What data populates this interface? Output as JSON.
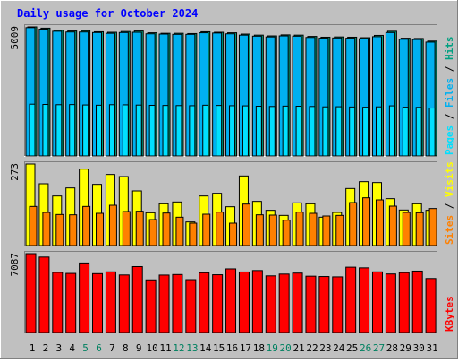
{
  "chart_data": {
    "type": "bar",
    "title": "Daily usage for October 2024",
    "categories": [
      "1",
      "2",
      "3",
      "4",
      "5",
      "6",
      "7",
      "8",
      "9",
      "10",
      "11",
      "12",
      "13",
      "14",
      "15",
      "16",
      "17",
      "18",
      "19",
      "20",
      "21",
      "22",
      "23",
      "24",
      "25",
      "26",
      "27",
      "28",
      "29",
      "30",
      "31"
    ],
    "weekend_days": [
      "5",
      "6",
      "12",
      "13",
      "19",
      "20",
      "26",
      "27"
    ],
    "panels": [
      {
        "id": "hits-files-pages",
        "ymax_label": "5009",
        "ymax": 5009,
        "legend": [
          "Pages",
          "/",
          "Files",
          "/",
          "Hits"
        ],
        "series": [
          {
            "name": "Hits",
            "color": "#00a080",
            "values": [
              5009,
              4960,
              4880,
              4850,
              4860,
              4820,
              4800,
              4830,
              4850,
              4780,
              4760,
              4760,
              4750,
              4820,
              4800,
              4780,
              4730,
              4690,
              4660,
              4700,
              4690,
              4640,
              4610,
              4620,
              4610,
              4590,
              4680,
              4840,
              4570,
              4560,
              4460
            ]
          },
          {
            "name": "Files",
            "color": "#00b0f0",
            "values": [
              4980,
              4920,
              4840,
              4810,
              4810,
              4790,
              4760,
              4790,
              4800,
              4740,
              4730,
              4720,
              4720,
              4780,
              4770,
              4740,
              4690,
              4650,
              4620,
              4660,
              4650,
              4600,
              4570,
              4580,
              4570,
              4550,
              4630,
              4790,
              4530,
              4520,
              4420
            ]
          },
          {
            "name": "Pages",
            "color": "#00e0ff",
            "values": [
              2010,
              2000,
              1990,
              1995,
              1980,
              1970,
              1990,
              1985,
              1975,
              1965,
              1960,
              1955,
              1950,
              1970,
              1960,
              1950,
              1945,
              1930,
              1920,
              1935,
              1930,
              1920,
              1905,
              1910,
              1900,
              1890,
              1905,
              1945,
              1890,
              1885,
              1860
            ]
          }
        ]
      },
      {
        "id": "visits-sites",
        "ymax_label": "273",
        "ymax": 273,
        "legend": [
          "Sites",
          "/",
          "Visits"
        ],
        "series": [
          {
            "name": "Visits",
            "color": "#ffff00",
            "values": [
              273,
              207,
              166,
              193,
              256,
              205,
              238,
              231,
              183,
              110,
              140,
              146,
              79,
              166,
              175,
              130,
              233,
              148,
              118,
              101,
              143,
              140,
              95,
              111,
              191,
              214,
              211,
              157,
              119,
              140,
              118
            ]
          },
          {
            "name": "Sites",
            "color": "#ff8000",
            "values": [
              131,
              111,
              104,
              103,
              131,
              108,
              135,
              114,
              115,
              87,
              109,
              95,
              75,
              105,
              112,
              75,
              139,
              103,
              102,
              85,
              112,
              108,
              99,
              101,
              144,
              160,
              153,
              132,
              111,
              110,
              124
            ]
          }
        ]
      },
      {
        "id": "kbytes",
        "ymax_label": "7087",
        "ymax": 7087,
        "legend": [
          "KBytes"
        ],
        "series": [
          {
            "name": "KBytes",
            "color": "#ff0000",
            "values": [
              7087,
              6780,
              5400,
              5310,
              6250,
              5290,
              5450,
              5170,
              5920,
              4730,
              5160,
              5210,
              4750,
              5370,
              5190,
              5720,
              5440,
              5570,
              5090,
              5250,
              5340,
              5060,
              5030,
              5000,
              5870,
              5810,
              5450,
              5260,
              5380,
              5520,
              4850
            ]
          }
        ]
      }
    ]
  }
}
